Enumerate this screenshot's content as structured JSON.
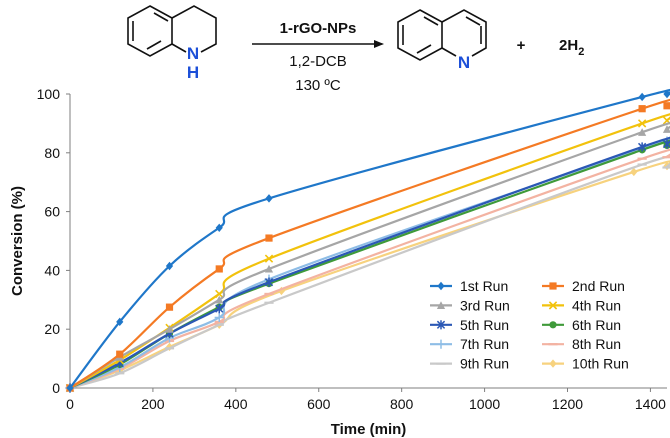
{
  "reaction": {
    "reactant_atom_N": "N",
    "reactant_atom_H": "H",
    "catalyst": "1-rGO-NPs",
    "solvent": "1,2-DCB",
    "temperature": "130 ºC",
    "product_atom_N": "N",
    "plus": "+",
    "byproduct_prefix": "2H",
    "byproduct_subscript": "2"
  },
  "chart_data": {
    "type": "line",
    "title": "",
    "xlabel": "Time (min)",
    "ylabel": "Conversion (%)",
    "xlim": [
      0,
      1440
    ],
    "ylim": [
      0,
      100
    ],
    "xticks": [
      0,
      200,
      400,
      600,
      800,
      1000,
      1200,
      1400
    ],
    "yticks": [
      0,
      20,
      40,
      60,
      80,
      100
    ],
    "grid": false,
    "legend_position": "bottom-right",
    "legend_columns": 2,
    "series": [
      {
        "name": "1st Run",
        "color": "#1f77c9",
        "marker": "diamond",
        "x": [
          0,
          120,
          240,
          360,
          480,
          1380,
          1440
        ],
        "y": [
          0,
          22.5,
          41.5,
          54.5,
          64.5,
          99,
          100
        ]
      },
      {
        "name": "2nd Run",
        "color": "#f47a24",
        "marker": "square",
        "x": [
          0,
          120,
          240,
          360,
          480,
          1380,
          1440
        ],
        "y": [
          0,
          11.5,
          27.5,
          40.5,
          51,
          95,
          96
        ]
      },
      {
        "name": "3rd Run",
        "color": "#a6a6a6",
        "marker": "triangle",
        "x": [
          0,
          120,
          240,
          360,
          480,
          1380,
          1440
        ],
        "y": [
          0,
          10.5,
          20,
          30,
          40.5,
          87,
          88
        ]
      },
      {
        "name": "4th Run",
        "color": "#f2c20c",
        "marker": "x",
        "x": [
          0,
          120,
          240,
          360,
          480,
          1380,
          1440
        ],
        "y": [
          0,
          9.5,
          20.5,
          32,
          44,
          90,
          91
        ]
      },
      {
        "name": "5th Run",
        "color": "#2b58b5",
        "marker": "asterisk",
        "x": [
          0,
          120,
          240,
          360,
          480,
          1380,
          1440
        ],
        "y": [
          0,
          8.5,
          18.5,
          27,
          36,
          82,
          83
        ]
      },
      {
        "name": "6th Run",
        "color": "#3f9a3a",
        "marker": "circle",
        "x": [
          0,
          120,
          240,
          360,
          480,
          1380,
          1440
        ],
        "y": [
          0,
          8,
          18.5,
          27.5,
          35.5,
          81,
          82.5
        ]
      },
      {
        "name": "7th Run",
        "color": "#8ebde6",
        "marker": "plus",
        "x": [
          0,
          120,
          240,
          360,
          480,
          1380,
          1440
        ],
        "y": [
          0,
          7,
          17,
          24,
          37,
          81.5,
          84
        ]
      },
      {
        "name": "8th Run",
        "color": "#f3b3a2",
        "marker": "dash",
        "x": [
          0,
          120,
          240,
          360,
          480,
          1380,
          1440
        ],
        "y": [
          0,
          6.5,
          16,
          22.5,
          32,
          78,
          78.5
        ]
      },
      {
        "name": "9th Run",
        "color": "#c9c9c9",
        "marker": "dash",
        "x": [
          0,
          120,
          240,
          360,
          480,
          1380,
          1440
        ],
        "y": [
          0,
          5,
          13.5,
          21.5,
          29,
          76,
          75
        ]
      },
      {
        "name": "10th Run",
        "color": "#f7d27e",
        "marker": "diamond",
        "x": [
          0,
          120,
          240,
          360,
          510,
          1360,
          1440
        ],
        "y": [
          0,
          6,
          14,
          21.5,
          33,
          73.5,
          75.5
        ]
      }
    ]
  }
}
